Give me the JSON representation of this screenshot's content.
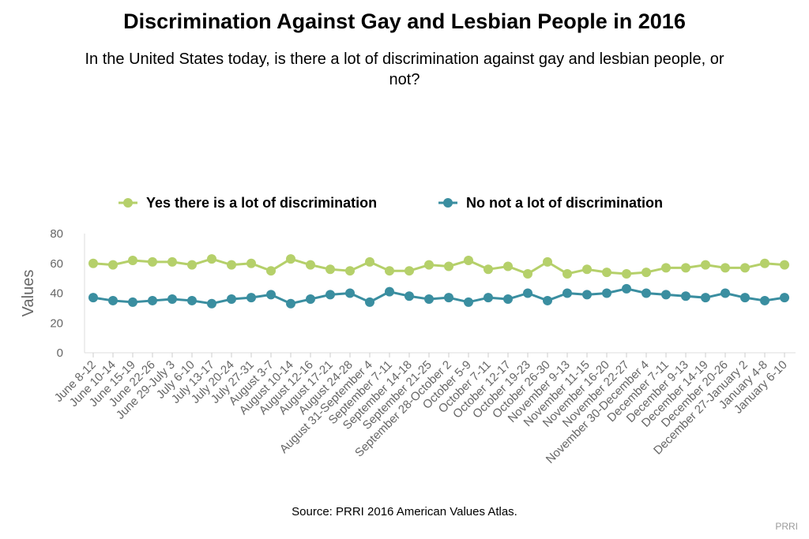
{
  "title": "Discrimination Against Gay and Lesbian People in 2016",
  "subtitle": "In the United States today, is there a lot of discrimination against gay and lesbian people, or not?",
  "source": "Source: PRRI 2016 American Values Atlas.",
  "credit": "PRRI",
  "chart_data": {
    "type": "line",
    "title": "Discrimination Against Gay and Lesbian People in 2016",
    "ylabel": "Values",
    "xlabel": "",
    "ylim": [
      0,
      80
    ],
    "yticks": [
      0,
      20,
      40,
      60,
      80
    ],
    "grid": false,
    "legend": "top",
    "categories": [
      "June 8-12",
      "June 10-14",
      "June 15-19",
      "June 22-26",
      "June 29-July 3",
      "July 6-10",
      "July 13-17",
      "July 20-24",
      "July 27-31",
      "August 3-7",
      "August 10-14",
      "August 12-16",
      "August 17-21",
      "August 24-28",
      "August 31-September 4",
      "September 7-11",
      "September 14-18",
      "September 21-25",
      "September 28-October 2",
      "October 5-9",
      "October 7-11",
      "October 12-17",
      "October 19-23",
      "October 26-30",
      "November 9-13",
      "November 11-15",
      "November 16-20",
      "November 22-27",
      "November 30-December 4",
      "December 7-11",
      "December 9-13",
      "December 14-19",
      "December 20-26",
      "December 27-January 2",
      "January 4-8",
      "January 6-10"
    ],
    "series": [
      {
        "name": "Yes there is a lot of discrimination",
        "color": "#b5d06a",
        "values": [
          60,
          59,
          62,
          61,
          61,
          59,
          63,
          59,
          60,
          55,
          63,
          59,
          56,
          55,
          61,
          55,
          55,
          59,
          58,
          62,
          56,
          58,
          53,
          61,
          53,
          56,
          54,
          53,
          54,
          57,
          57,
          59,
          57,
          57,
          60,
          59
        ]
      },
      {
        "name": "No not a lot of discrimination",
        "color": "#3a8ea0",
        "values": [
          37,
          35,
          34,
          35,
          36,
          35,
          33,
          36,
          37,
          39,
          33,
          36,
          39,
          40,
          34,
          41,
          38,
          36,
          37,
          34,
          37,
          36,
          40,
          35,
          40,
          39,
          40,
          43,
          40,
          39,
          38,
          37,
          40,
          37,
          35,
          37
        ]
      }
    ]
  }
}
